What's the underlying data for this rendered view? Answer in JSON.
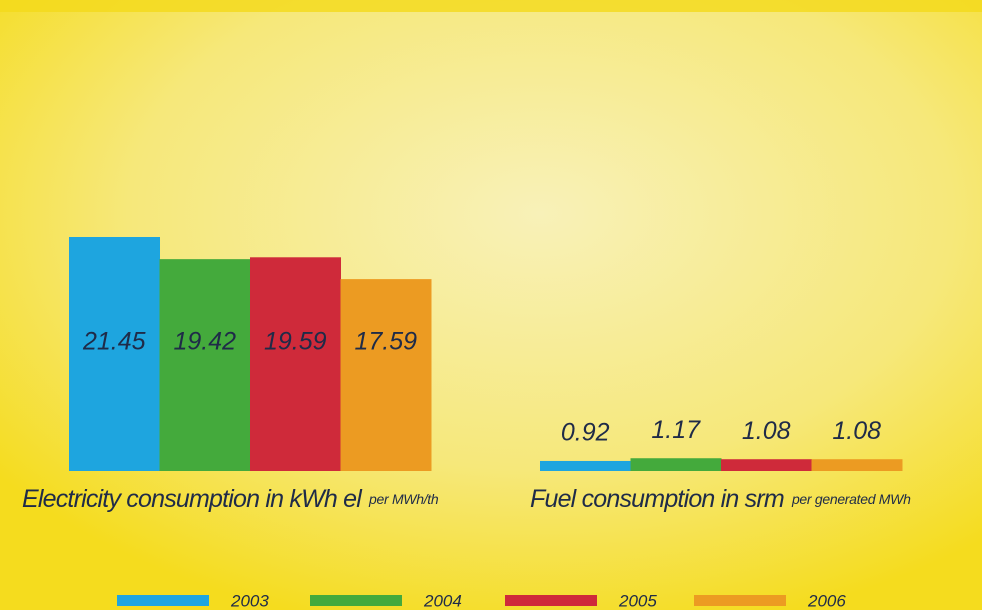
{
  "chart_data": {
    "type": "bar",
    "categories": [
      "Electricity consumption in kWh el",
      "Fuel consumption in srm"
    ],
    "category_units": [
      "per MWh/th",
      "per generated MWh"
    ],
    "series": [
      {
        "name": "2003",
        "color": "#1ea5df",
        "values": [
          21.45,
          0.92
        ]
      },
      {
        "name": "2004",
        "color": "#44aa3c",
        "values": [
          19.42,
          1.17
        ]
      },
      {
        "name": "2005",
        "color": "#cf2a3a",
        "values": [
          19.59,
          1.08
        ]
      },
      {
        "name": "2006",
        "color": "#ec9b22",
        "values": [
          17.59,
          1.08
        ]
      }
    ]
  }
}
